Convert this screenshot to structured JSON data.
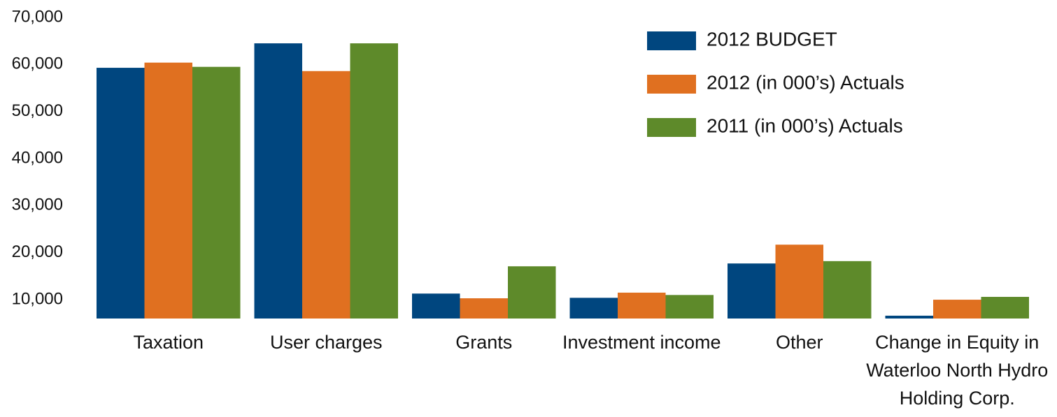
{
  "chart_data": {
    "type": "bar",
    "categories": [
      "Taxation",
      "User charges",
      "Grants",
      "Investment income",
      "Other",
      "Change in Equity in Waterloo North Hydro Holding Corp."
    ],
    "series": [
      {
        "name": "2012 BUDGET",
        "color": "#00467f",
        "values": [
          59300,
          64500,
          11300,
          10400,
          17700,
          6600
        ]
      },
      {
        "name": "2012 (in 000’s) Actuals",
        "color": "#e07020",
        "values": [
          60400,
          58600,
          10300,
          11500,
          21700,
          10000
        ]
      },
      {
        "name": "2011 (in 000’s) Actuals",
        "color": "#5e8a2a",
        "values": [
          59500,
          64500,
          17100,
          11000,
          18200,
          10600
        ]
      }
    ],
    "ylim": [
      6000,
      70000
    ],
    "yticks": [
      {
        "value": 10000,
        "label": "10,000"
      },
      {
        "value": 20000,
        "label": "20,000"
      },
      {
        "value": 30000,
        "label": "30,000"
      },
      {
        "value": 40000,
        "label": "40,000"
      },
      {
        "value": 50000,
        "label": "50,000"
      },
      {
        "value": 60000,
        "label": "60,000"
      },
      {
        "value": 70000,
        "label": "70,000"
      }
    ],
    "grid": false,
    "legend": "upper right"
  }
}
